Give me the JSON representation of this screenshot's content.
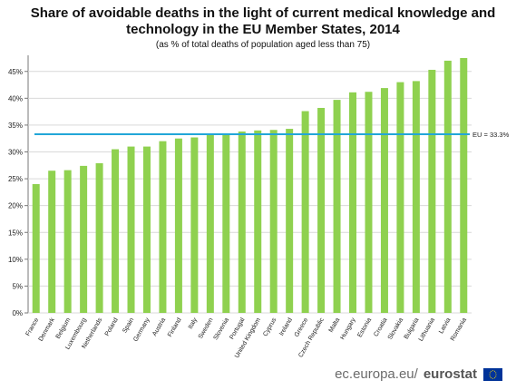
{
  "header": {
    "title_line1": "Share of avoidable deaths in the light of current medical knowledge and",
    "title_line2": "technology in the EU Member States, 2014",
    "subtitle": "(as % of total deaths of population aged less than 75)"
  },
  "footer": {
    "source_domain": "ec.europa.eu/",
    "brand": "eurostat",
    "flag_icon": "eu-flag-icon"
  },
  "chart_data": {
    "type": "bar",
    "title": "Share of avoidable deaths in the light of current medical knowledge and technology in the EU Member States, 2014",
    "subtitle": "(as % of total deaths of population aged less than 75)",
    "categories": [
      "France",
      "Denmark",
      "Belgium",
      "Luxembourg",
      "Netherlands",
      "Poland",
      "Spain",
      "Germany",
      "Austria",
      "Finland",
      "Italy",
      "Sweden",
      "Slovenia",
      "Portugal",
      "United Kingdom",
      "Cyprus",
      "Ireland",
      "Greece",
      "Czech Republic",
      "Malta",
      "Hungary",
      "Estonia",
      "Croatia",
      "Slovakia",
      "Bulgaria",
      "Lithuania",
      "Latvia",
      "Romania"
    ],
    "values": [
      24.0,
      26.5,
      26.6,
      27.4,
      27.9,
      30.5,
      31.0,
      31.0,
      32.0,
      32.5,
      32.7,
      33.2,
      33.3,
      33.8,
      34.0,
      34.1,
      34.3,
      37.6,
      38.2,
      39.7,
      41.1,
      41.2,
      41.9,
      43.0,
      43.2,
      45.3,
      47.0,
      47.5
    ],
    "ylim": [
      0,
      48
    ],
    "yticks": [
      0,
      5,
      10,
      15,
      20,
      25,
      30,
      35,
      40,
      45
    ],
    "ytick_labels": [
      "0%",
      "5%",
      "10%",
      "15%",
      "20%",
      "25%",
      "30%",
      "35%",
      "40%",
      "45%"
    ],
    "xlabel": "",
    "ylabel": "",
    "reference_line": {
      "value": 33.3,
      "label": "EU = 33.3%"
    },
    "grid": true,
    "legend": "none",
    "colors": {
      "bar": "#8fd14f",
      "reference_line": "#22a6d8",
      "grid": "#d9d9d9",
      "axis": "#777777",
      "text": "#222222"
    }
  }
}
